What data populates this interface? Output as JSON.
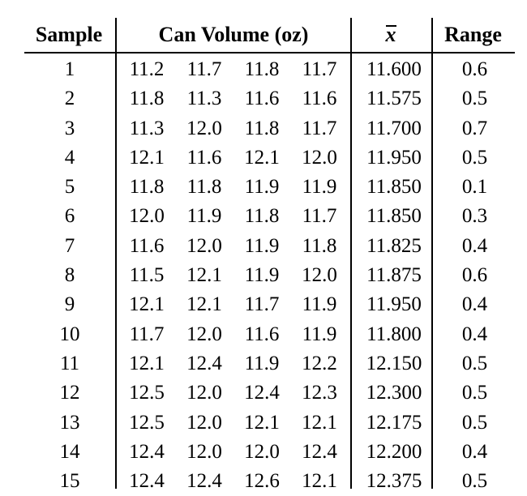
{
  "headers": {
    "sample": "Sample",
    "volume": "Can Volume (oz)",
    "xbar": "x",
    "range": "Range"
  },
  "rows": [
    {
      "sample": "1",
      "v": [
        "11.2",
        "11.7",
        "11.8",
        "11.7"
      ],
      "xbar": "11.600",
      "range": "0.6"
    },
    {
      "sample": "2",
      "v": [
        "11.8",
        "11.3",
        "11.6",
        "11.6"
      ],
      "xbar": "11.575",
      "range": "0.5"
    },
    {
      "sample": "3",
      "v": [
        "11.3",
        "12.0",
        "11.8",
        "11.7"
      ],
      "xbar": "11.700",
      "range": "0.7"
    },
    {
      "sample": "4",
      "v": [
        "12.1",
        "11.6",
        "12.1",
        "12.0"
      ],
      "xbar": "11.950",
      "range": "0.5"
    },
    {
      "sample": "5",
      "v": [
        "11.8",
        "11.8",
        "11.9",
        "11.9"
      ],
      "xbar": "11.850",
      "range": "0.1"
    },
    {
      "sample": "6",
      "v": [
        "12.0",
        "11.9",
        "11.8",
        "11.7"
      ],
      "xbar": "11.850",
      "range": "0.3"
    },
    {
      "sample": "7",
      "v": [
        "11.6",
        "12.0",
        "11.9",
        "11.8"
      ],
      "xbar": "11.825",
      "range": "0.4"
    },
    {
      "sample": "8",
      "v": [
        "11.5",
        "12.1",
        "11.9",
        "12.0"
      ],
      "xbar": "11.875",
      "range": "0.6"
    },
    {
      "sample": "9",
      "v": [
        "12.1",
        "12.1",
        "11.7",
        "11.9"
      ],
      "xbar": "11.950",
      "range": "0.4"
    },
    {
      "sample": "10",
      "v": [
        "11.7",
        "12.0",
        "11.6",
        "11.9"
      ],
      "xbar": "11.800",
      "range": "0.4"
    },
    {
      "sample": "11",
      "v": [
        "12.1",
        "12.4",
        "11.9",
        "12.2"
      ],
      "xbar": "12.150",
      "range": "0.5"
    },
    {
      "sample": "12",
      "v": [
        "12.5",
        "12.0",
        "12.4",
        "12.3"
      ],
      "xbar": "12.300",
      "range": "0.5"
    },
    {
      "sample": "13",
      "v": [
        "12.5",
        "12.0",
        "12.1",
        "12.1"
      ],
      "xbar": "12.175",
      "range": "0.5"
    },
    {
      "sample": "14",
      "v": [
        "12.4",
        "12.0",
        "12.0",
        "12.4"
      ],
      "xbar": "12.200",
      "range": "0.4"
    },
    {
      "sample": "15",
      "v": [
        "12.4",
        "12.4",
        "12.6",
        "12.1"
      ],
      "xbar": "12.375",
      "range": "0.5"
    }
  ]
}
